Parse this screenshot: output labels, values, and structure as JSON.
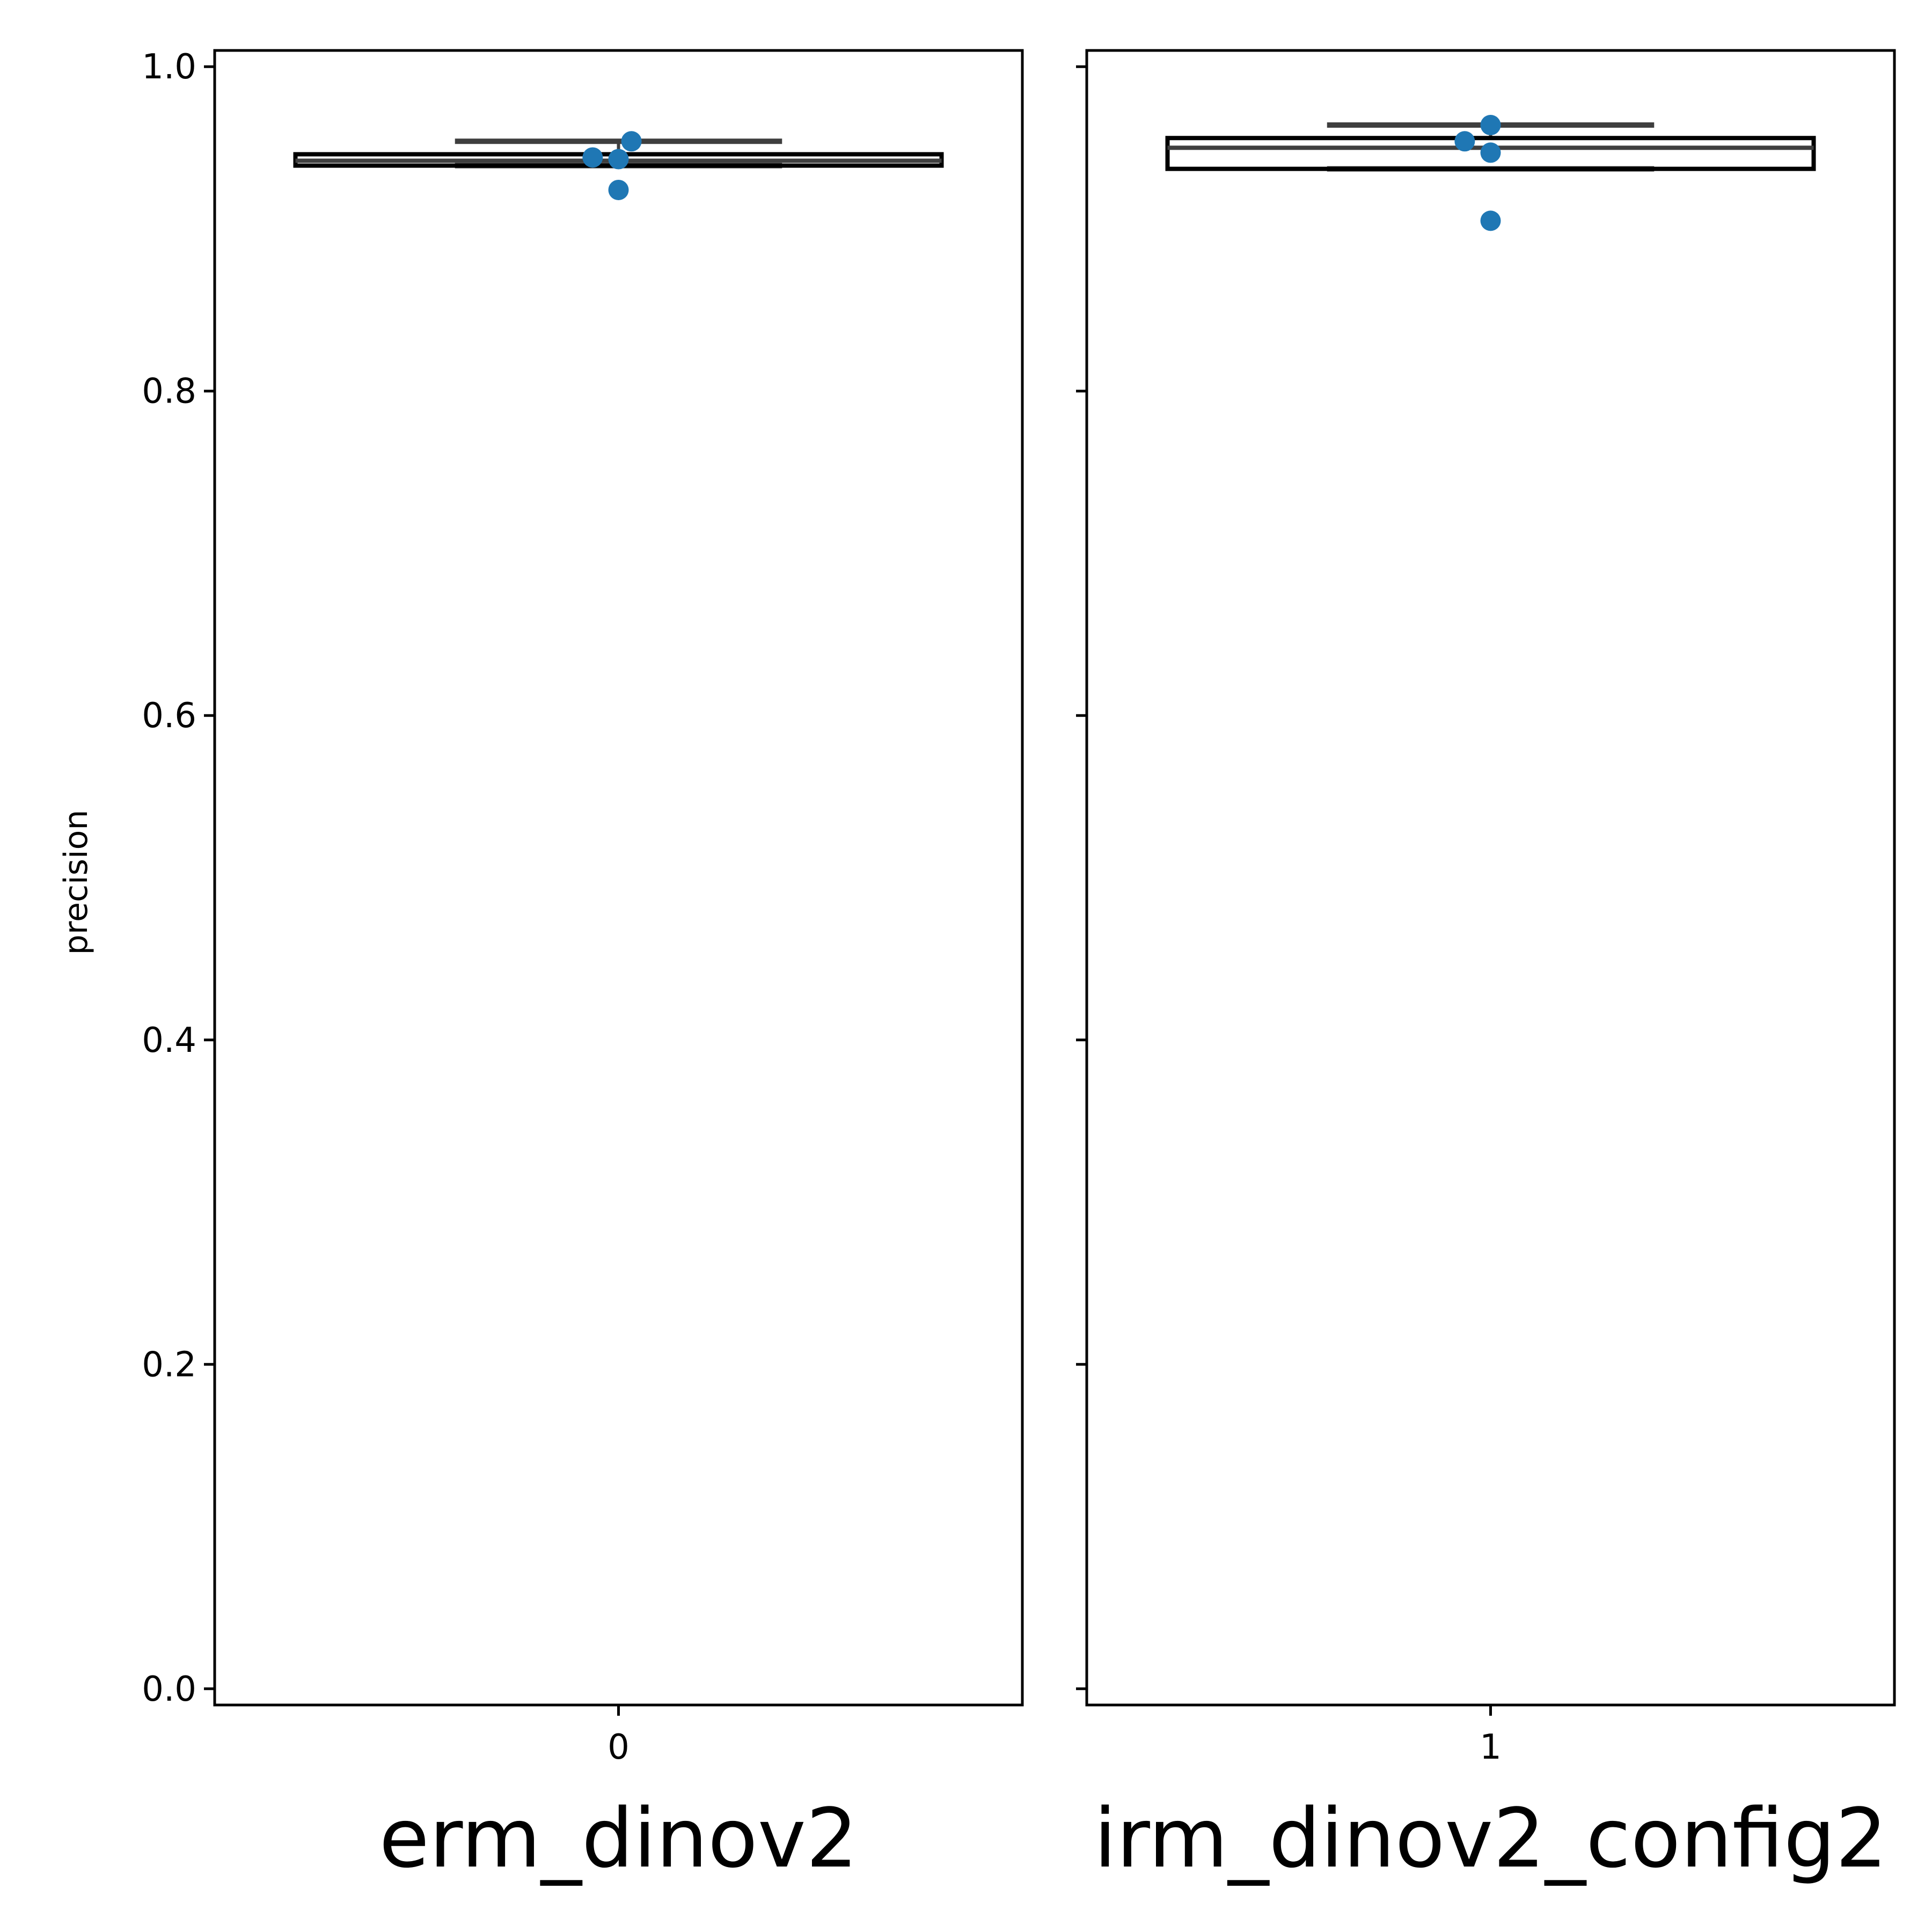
{
  "chart_data": {
    "type": "box",
    "ylabel": "precision",
    "ylim": [
      -0.01,
      1.01
    ],
    "yticks": [
      0.0,
      0.2,
      0.4,
      0.6,
      0.8,
      1.0
    ],
    "ytick_labels": [
      "0.0",
      "0.2",
      "0.4",
      "0.6",
      "0.8",
      "1.0"
    ],
    "panels": [
      {
        "name": "erm_dinov2",
        "xtick_label": "0",
        "box": {
          "q1": 0.939,
          "median": 0.942,
          "q3": 0.946,
          "whisker_low": 0.939,
          "whisker_high": 0.954
        },
        "points": [
          {
            "x": -0.04,
            "y": 0.944
          },
          {
            "x": 0.0,
            "y": 0.943
          },
          {
            "x": 0.02,
            "y": 0.954
          },
          {
            "x": 0.0,
            "y": 0.924
          }
        ]
      },
      {
        "name": "irm_dinov2_config2",
        "xtick_label": "1",
        "box": {
          "q1": 0.937,
          "median": 0.95,
          "q3": 0.956,
          "whisker_low": 0.937,
          "whisker_high": 0.964
        },
        "points": [
          {
            "x": -0.04,
            "y": 0.954
          },
          {
            "x": 0.0,
            "y": 0.964
          },
          {
            "x": 0.0,
            "y": 0.947
          },
          {
            "x": 0.0,
            "y": 0.905
          }
        ]
      }
    ],
    "colors": {
      "points": "#1f77b4",
      "box_edge": "#000000",
      "whisker": "#3f3f3f"
    },
    "grid": false,
    "legend": "none"
  }
}
